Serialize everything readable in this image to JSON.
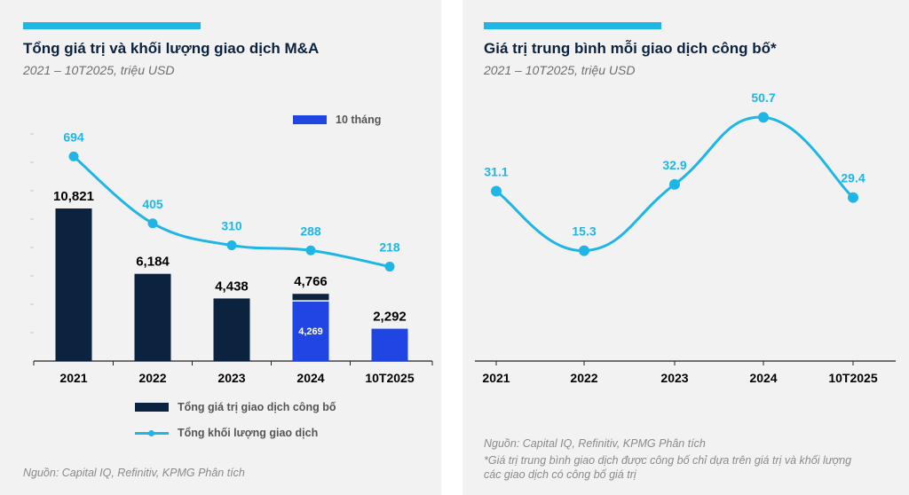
{
  "colors": {
    "navy": "#0c2340",
    "cyan": "#1fb6e6",
    "blue": "#1f45e3",
    "panel_bg": "#f2f2f2"
  },
  "chart_data": [
    {
      "type": "bar",
      "title": "Tổng giá trị và khối lượng giao dịch M&A",
      "subtitle": "2021 – 10T2025, triệu USD",
      "categories": [
        "2021",
        "2022",
        "2023",
        "2024",
        "10T2025"
      ],
      "series": [
        {
          "name": "Tổng giá trị giao dịch công bố",
          "type": "bar",
          "values": [
            10821,
            6184,
            4438,
            4766,
            null
          ],
          "labels": [
            "10,821",
            "6,184",
            "4,438",
            "4,766",
            ""
          ]
        },
        {
          "name": "10 tháng",
          "type": "bar",
          "values": [
            null,
            null,
            null,
            4269,
            2292
          ],
          "labels": [
            "",
            "",
            "",
            "4,269",
            "2,292"
          ]
        },
        {
          "name": "Tổng khối lượng giao dịch",
          "type": "line",
          "values": [
            694,
            405,
            310,
            288,
            218
          ],
          "labels": [
            "694",
            "405",
            "310",
            "288",
            "218"
          ]
        }
      ],
      "ylim_bar": [
        0,
        20000
      ],
      "ylim_line": [
        -190,
        910
      ],
      "legend": {
        "ten_months": "10 tháng",
        "bar": "Tổng giá trị giao dịch công bố",
        "line": "Tổng khối lượng giao dịch"
      },
      "source": "Nguồn: Capital IQ, Refinitiv, KPMG Phân tích"
    },
    {
      "type": "line",
      "title": "Giá trị trung bình mỗi giao dịch công bố*",
      "subtitle": "2021 – 10T2025, triệu USD",
      "categories": [
        "2021",
        "2022",
        "2023",
        "2024",
        "10T2025"
      ],
      "series": [
        {
          "name": "Giá trị trung bình mỗi giao dịch công bố",
          "values": [
            31.1,
            15.3,
            32.9,
            50.7,
            29.4
          ],
          "labels": [
            "31.1",
            "15.3",
            "32.9",
            "50.7",
            "29.4"
          ]
        }
      ],
      "ylim": [
        -14,
        63
      ],
      "source": "Nguồn: Capital IQ, Refinitiv, KPMG Phân tích",
      "footnote": "*Giá trị trung bình giao dịch được công bố chỉ dựa trên giá trị và khối lượng các giao dịch có công bố giá trị"
    }
  ]
}
